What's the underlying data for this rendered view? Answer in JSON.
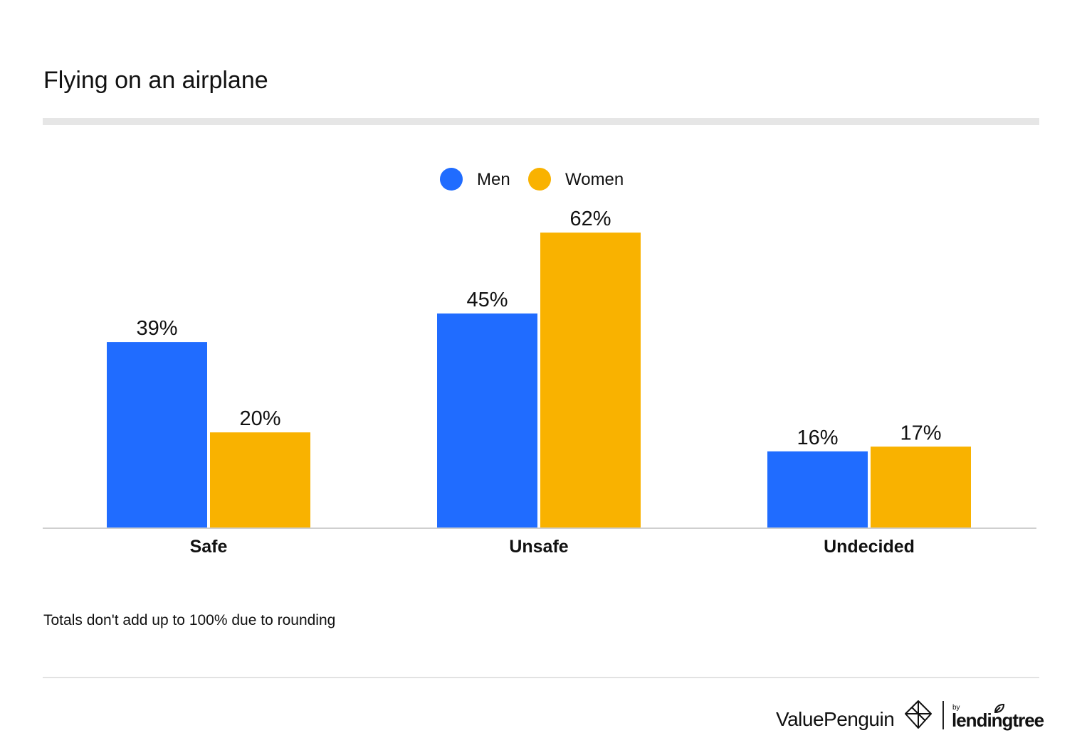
{
  "header": {
    "title": "Flying on an airplane"
  },
  "chart_data": {
    "type": "bar",
    "title": "Flying on an airplane",
    "categories": [
      "Safe",
      "Unsafe",
      "Undecided"
    ],
    "series": [
      {
        "name": "Men",
        "color": "#206cff",
        "values": [
          39,
          45,
          16
        ],
        "labels": [
          "39%",
          "45%",
          "16%"
        ]
      },
      {
        "name": "Women",
        "color": "#f9b200",
        "values": [
          20,
          62,
          17
        ],
        "labels": [
          "20%",
          "62%",
          "17%"
        ]
      }
    ],
    "xlabel": "",
    "ylabel": "",
    "ylim": [
      0,
      70
    ],
    "grid": false,
    "legend": "top-center"
  },
  "note": "Totals don't add up to 100% due to rounding",
  "footer": {
    "brand_name": "ValuePenguin",
    "partner_prefix": "by",
    "partner_name": "lendingtree"
  }
}
